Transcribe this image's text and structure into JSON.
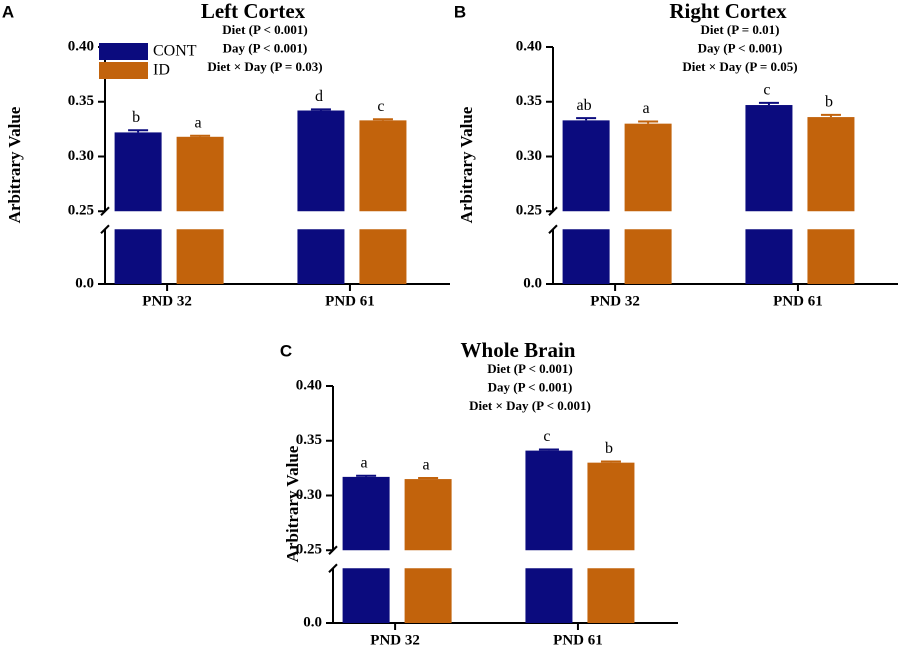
{
  "chart_data": [
    {
      "type": "bar",
      "panel": "A",
      "title": "Left Cortex",
      "annotations": [
        "Diet (P < 0.001)",
        "Day (P < 0.001)",
        "Diet × Day (P = 0.03)"
      ],
      "ylabel": "Arbitrary Value",
      "categories": [
        "PND 32",
        "PND 61"
      ],
      "series": [
        {
          "name": "CONT",
          "color": "#0b0b7e",
          "values": [
            0.322,
            0.342
          ],
          "errors": [
            0.002,
            0.001
          ],
          "letters": [
            "b",
            "d"
          ]
        },
        {
          "name": "ID",
          "color": "#c2630c",
          "values": [
            0.318,
            0.333
          ],
          "errors": [
            0.001,
            0.001
          ],
          "letters": [
            "a",
            "c"
          ]
        }
      ],
      "ylim": [
        0,
        0.4
      ],
      "ybreak": [
        0.05,
        0.25
      ],
      "yticks": [
        {
          "value": 0,
          "label": "0.0"
        },
        0.25,
        {
          "value": 0.3,
          "label": "0.30"
        },
        0.35,
        {
          "value": 0.4,
          "label": "0.40"
        }
      ],
      "legend": true
    },
    {
      "type": "bar",
      "panel": "B",
      "title": "Right Cortex",
      "annotations": [
        "Diet (P = 0.01)",
        "Day (P < 0.001)",
        "Diet × Day (P = 0.05)"
      ],
      "ylabel": "Arbitrary Value",
      "categories": [
        "PND 32",
        "PND 61"
      ],
      "series": [
        {
          "name": "CONT",
          "color": "#0b0b7e",
          "values": [
            0.333,
            0.347
          ],
          "errors": [
            0.002,
            0.002
          ],
          "letters": [
            "ab",
            "c"
          ]
        },
        {
          "name": "ID",
          "color": "#c2630c",
          "values": [
            0.33,
            0.336
          ],
          "errors": [
            0.002,
            0.002
          ],
          "letters": [
            "a",
            "b"
          ]
        }
      ],
      "ylim": [
        0,
        0.4
      ],
      "ybreak": [
        0.05,
        0.25
      ],
      "yticks": [
        {
          "value": 0,
          "label": "0.0"
        },
        0.25,
        {
          "value": 0.3,
          "label": "0.30"
        },
        0.35,
        {
          "value": 0.4,
          "label": "0.40"
        }
      ],
      "legend": false
    },
    {
      "type": "bar",
      "panel": "C",
      "title": "Whole Brain",
      "annotations": [
        "Diet (P < 0.001)",
        "Day (P < 0.001)",
        "Diet × Day (P < 0.001)"
      ],
      "ylabel": "Arbitrary Value",
      "categories": [
        "PND 32",
        "PND 61"
      ],
      "series": [
        {
          "name": "CONT",
          "color": "#0b0b7e",
          "values": [
            0.317,
            0.341
          ],
          "errors": [
            0.001,
            0.001
          ],
          "letters": [
            "a",
            "c"
          ]
        },
        {
          "name": "ID",
          "color": "#c2630c",
          "values": [
            0.315,
            0.33
          ],
          "errors": [
            0.001,
            0.001
          ],
          "letters": [
            "a",
            "b"
          ]
        }
      ],
      "ylim": [
        0,
        0.4
      ],
      "ybreak": [
        0.05,
        0.25
      ],
      "yticks": [
        {
          "value": 0,
          "label": "0.0"
        },
        0.25,
        {
          "value": 0.3,
          "label": "0.30"
        },
        0.35,
        {
          "value": 0.4,
          "label": "0.40"
        }
      ],
      "legend": false
    }
  ]
}
